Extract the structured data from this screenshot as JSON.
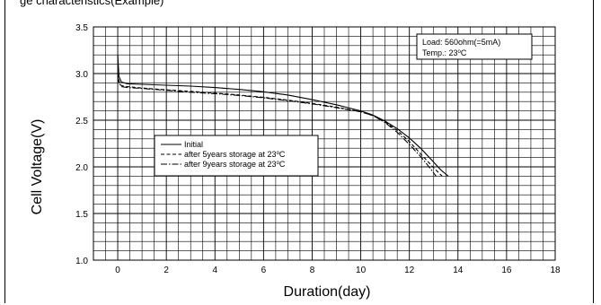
{
  "header": {
    "title_fragment": "ge characteristics(Example)"
  },
  "annotation": {
    "line1": "Load: 560ohm(=5mA)",
    "line2_prefix": "Temp.: 23",
    "line2_deg": "o",
    "line2_unit": "C"
  },
  "chart_data": {
    "type": "line",
    "xlabel": "Duration(day)",
    "ylabel": "Cell Voltage(V)",
    "xlim": [
      -1,
      18
    ],
    "ylim": [
      1.0,
      3.5
    ],
    "x_ticks": [
      0,
      2,
      4,
      6,
      8,
      10,
      12,
      14,
      16,
      18
    ],
    "y_ticks": [
      "1.0",
      "1.5",
      "2.0",
      "2.5",
      "3.0",
      "3.5"
    ],
    "grid": true,
    "legend_position": "center-left",
    "series": [
      {
        "name": "Initial",
        "style": "solid",
        "points": [
          [
            0,
            3.2
          ],
          [
            0.05,
            2.97
          ],
          [
            0.15,
            2.91
          ],
          [
            0.4,
            2.89
          ],
          [
            1,
            2.885
          ],
          [
            2,
            2.875
          ],
          [
            3,
            2.865
          ],
          [
            4,
            2.85
          ],
          [
            5,
            2.83
          ],
          [
            6,
            2.805
          ],
          [
            7,
            2.77
          ],
          [
            8,
            2.72
          ],
          [
            9,
            2.665
          ],
          [
            10,
            2.6
          ],
          [
            10.5,
            2.555
          ],
          [
            11,
            2.49
          ],
          [
            11.5,
            2.41
          ],
          [
            12,
            2.31
          ],
          [
            12.5,
            2.19
          ],
          [
            13,
            2.05
          ],
          [
            13.3,
            1.965
          ],
          [
            13.6,
            1.9
          ]
        ]
      },
      {
        "name": "after 5years storage at 23°C",
        "style": "dashed",
        "points": [
          [
            0,
            3.0
          ],
          [
            0.05,
            2.92
          ],
          [
            0.15,
            2.87
          ],
          [
            0.4,
            2.86
          ],
          [
            1,
            2.845
          ],
          [
            2,
            2.825
          ],
          [
            3,
            2.81
          ],
          [
            4,
            2.79
          ],
          [
            5,
            2.77
          ],
          [
            6,
            2.745
          ],
          [
            7,
            2.715
          ],
          [
            8,
            2.68
          ],
          [
            9,
            2.64
          ],
          [
            10,
            2.59
          ],
          [
            10.5,
            2.55
          ],
          [
            11,
            2.48
          ],
          [
            11.5,
            2.39
          ],
          [
            12,
            2.27
          ],
          [
            12.5,
            2.13
          ],
          [
            13,
            1.99
          ],
          [
            13.35,
            1.9
          ]
        ]
      },
      {
        "name": "after 9years storage at 23°C",
        "style": "dashdot",
        "points": [
          [
            0,
            2.97
          ],
          [
            0.05,
            2.9
          ],
          [
            0.15,
            2.86
          ],
          [
            0.4,
            2.85
          ],
          [
            1,
            2.84
          ],
          [
            2,
            2.82
          ],
          [
            3,
            2.8
          ],
          [
            4,
            2.785
          ],
          [
            5,
            2.765
          ],
          [
            6,
            2.74
          ],
          [
            7,
            2.71
          ],
          [
            8,
            2.675
          ],
          [
            9,
            2.635
          ],
          [
            10,
            2.59
          ],
          [
            10.5,
            2.55
          ],
          [
            11,
            2.475
          ],
          [
            11.5,
            2.37
          ],
          [
            12,
            2.24
          ],
          [
            12.5,
            2.1
          ],
          [
            12.9,
            1.97
          ],
          [
            13.1,
            1.9
          ]
        ]
      }
    ]
  }
}
